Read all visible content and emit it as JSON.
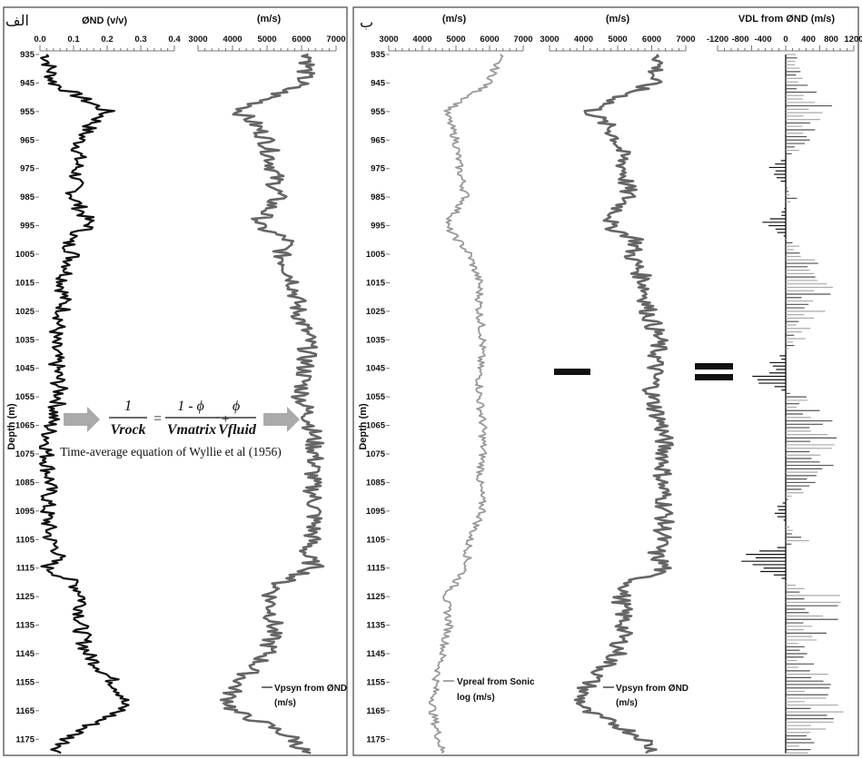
{
  "panels": {
    "left_label": "الف",
    "right_label": "ب"
  },
  "depth_axis": {
    "label": "Depth (m)",
    "ticks": [
      "935",
      "945",
      "955",
      "965",
      "975",
      "985",
      "995",
      "1005",
      "1015",
      "1025",
      "1035",
      "1045",
      "1055",
      "1065",
      "1075",
      "1085",
      "1095",
      "1105",
      "1115",
      "1125",
      "1135",
      "1145",
      "1155",
      "1165",
      "1175"
    ]
  },
  "equation": {
    "lhs_num": "1",
    "lhs_den": "Vrock",
    "eq": "=",
    "m_num": "1 - ϕ",
    "m_den": "Vmatrix",
    "plus": "+",
    "f_num": "ϕ",
    "f_den": "Vfluid",
    "caption": "Time-average equation of Wyllie et al (1956)"
  },
  "tracks": {
    "porosity": {
      "header": "ØND (v/v)",
      "ticks": [
        "0.0",
        "0.1",
        "0.2",
        "0.3",
        "0.4"
      ]
    },
    "vpsyn_left": {
      "header": "(m/s)",
      "ticks": [
        "3000",
        "4000",
        "5000",
        "6000",
        "7000"
      ],
      "legend_line1": "Vpsyn from ØND",
      "legend_line2": "(m/s)"
    },
    "vpreal": {
      "header": "(m/s)",
      "ticks": [
        "3000",
        "4000",
        "5000",
        "6000",
        "7000"
      ],
      "legend_line1": "Vpreal from Sonic",
      "legend_line2": "log (m/s)"
    },
    "vpsyn_right": {
      "header": "(m/s)",
      "ticks": [
        "3000",
        "4000",
        "5000",
        "6000",
        "7000"
      ],
      "legend_line1": "Vpsyn from ØND",
      "legend_line2": "(m/s)"
    },
    "vdl": {
      "header": "VDL from ØND (m/s)",
      "ticks": [
        "-1200",
        "-800",
        "-400",
        "0",
        "400",
        "800",
        "1200"
      ]
    }
  },
  "chart_data": [
    {
      "type": "line",
      "title": "ØND (v/v)",
      "ylabel": "Depth (m)",
      "xlim": [
        0.0,
        0.4
      ],
      "ylim": [
        935,
        1180
      ],
      "series": [
        {
          "name": "",
          "color": "#111111",
          "depth": [
            935,
            945,
            955,
            960,
            965,
            975,
            985,
            995,
            1000,
            1005,
            1015,
            1025,
            1035,
            1045,
            1055,
            1065,
            1075,
            1085,
            1095,
            1105,
            1110,
            1115,
            1120,
            1125,
            1135,
            1145,
            1155,
            1160,
            1165,
            1170,
            1175,
            1180
          ],
          "values": [
            0.02,
            0.04,
            0.2,
            0.15,
            0.12,
            0.11,
            0.1,
            0.15,
            0.08,
            0.1,
            0.07,
            0.07,
            0.04,
            0.05,
            0.06,
            0.03,
            0.02,
            0.03,
            0.02,
            0.03,
            0.06,
            0.02,
            0.1,
            0.13,
            0.12,
            0.14,
            0.22,
            0.25,
            0.24,
            0.15,
            0.08,
            0.05
          ]
        }
      ]
    },
    {
      "type": "line",
      "title": "(m/s)",
      "ylabel": "Depth (m)",
      "xlim": [
        3000,
        7000
      ],
      "ylim": [
        935,
        1180
      ],
      "series": [
        {
          "name": "Vpsyn from ØND (m/s)",
          "color": "#666666",
          "depth": [
            935,
            945,
            955,
            960,
            965,
            975,
            985,
            995,
            1000,
            1005,
            1015,
            1025,
            1035,
            1045,
            1055,
            1065,
            1075,
            1085,
            1095,
            1105,
            1110,
            1115,
            1120,
            1125,
            1135,
            1145,
            1155,
            1160,
            1165,
            1170,
            1175,
            1180
          ],
          "values": [
            6300,
            6000,
            4200,
            4700,
            5000,
            5200,
            5300,
            4700,
            5600,
            5400,
            5800,
            5900,
            6200,
            6100,
            6000,
            6300,
            6400,
            6300,
            6400,
            6300,
            6100,
            6400,
            5400,
            5100,
            5200,
            5000,
            4200,
            3900,
            4000,
            5000,
            5800,
            6100
          ]
        }
      ]
    },
    {
      "type": "line",
      "title": "(m/s)",
      "ylabel": "Depth (m)",
      "xlim": [
        3000,
        7000
      ],
      "ylim": [
        935,
        1180
      ],
      "series": [
        {
          "name": "Vpreal from Sonic log (m/s)",
          "color": "#999999",
          "depth": [
            935,
            945,
            955,
            965,
            975,
            985,
            995,
            1005,
            1015,
            1025,
            1035,
            1045,
            1055,
            1065,
            1075,
            1085,
            1095,
            1105,
            1115,
            1125,
            1135,
            1145,
            1155,
            1165,
            1175,
            1180
          ],
          "values": [
            6300,
            6000,
            4700,
            5000,
            5100,
            5300,
            4700,
            5400,
            5700,
            5700,
            5800,
            5700,
            5700,
            5800,
            5800,
            5700,
            5800,
            5400,
            5300,
            4700,
            4800,
            4600,
            4400,
            4300,
            4500,
            4600
          ]
        }
      ]
    },
    {
      "type": "line",
      "title": "(m/s)",
      "ylabel": "Depth (m)",
      "xlim": [
        3000,
        7000
      ],
      "ylim": [
        935,
        1180
      ],
      "series": [
        {
          "name": "Vpsyn from ØND (m/s)",
          "color": "#666666",
          "depth": [
            935,
            945,
            955,
            960,
            965,
            975,
            985,
            995,
            1000,
            1005,
            1015,
            1025,
            1035,
            1045,
            1055,
            1065,
            1075,
            1085,
            1095,
            1105,
            1110,
            1115,
            1120,
            1125,
            1135,
            1145,
            1155,
            1160,
            1165,
            1170,
            1175,
            1180
          ],
          "values": [
            6300,
            6000,
            4200,
            4700,
            5000,
            5200,
            5300,
            4700,
            5600,
            5400,
            5800,
            5900,
            6200,
            6100,
            6000,
            6300,
            6400,
            6300,
            6400,
            6300,
            6100,
            6400,
            5400,
            5100,
            5200,
            5000,
            4200,
            3900,
            4000,
            5000,
            5800,
            6100
          ]
        }
      ]
    },
    {
      "type": "bar",
      "title": "VDL from ØND (m/s)",
      "ylabel": "Depth (m)",
      "xlim": [
        -1200,
        1200
      ],
      "ylim": [
        935,
        1180
      ],
      "series": [
        {
          "name": "VDL from ØND (m/s)",
          "color": "#555555",
          "depth": [
            935,
            945,
            955,
            965,
            975,
            985,
            995,
            1005,
            1015,
            1025,
            1035,
            1045,
            1050,
            1055,
            1065,
            1075,
            1085,
            1095,
            1105,
            1110,
            1115,
            1125,
            1135,
            1145,
            1155,
            1165,
            1175
          ],
          "values": [
            200,
            300,
            800,
            500,
            -300,
            200,
            -400,
            500,
            700,
            600,
            300,
            -400,
            -500,
            300,
            800,
            700,
            600,
            -300,
            400,
            -600,
            -700,
            800,
            700,
            300,
            700,
            900,
            400
          ]
        }
      ]
    }
  ]
}
